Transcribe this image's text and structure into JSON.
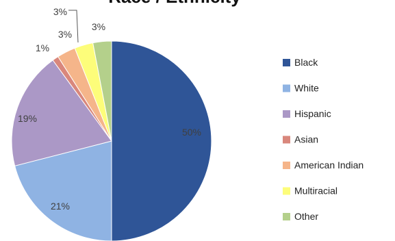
{
  "chart_data": {
    "type": "pie",
    "title": "Race / Ethnicity",
    "legend_position": "right",
    "slices": [
      {
        "name": "Black",
        "value": 50,
        "label": "50%",
        "color": "#2f5597"
      },
      {
        "name": "White",
        "value": 21,
        "label": "21%",
        "color": "#8fb3e3"
      },
      {
        "name": "Hispanic",
        "value": 19,
        "label": "19%",
        "color": "#ab98c6"
      },
      {
        "name": "Asian",
        "value": 1,
        "label": "1%",
        "color": "#d9877c"
      },
      {
        "name": "American Indian",
        "value": 3,
        "label": "3%",
        "color": "#f5b58a"
      },
      {
        "name": "Multiracial",
        "value": 3,
        "label": "3%",
        "color": "#fdfd7a"
      },
      {
        "name": "Other",
        "value": 3,
        "label": "3%",
        "color": "#b4d08b"
      }
    ]
  }
}
